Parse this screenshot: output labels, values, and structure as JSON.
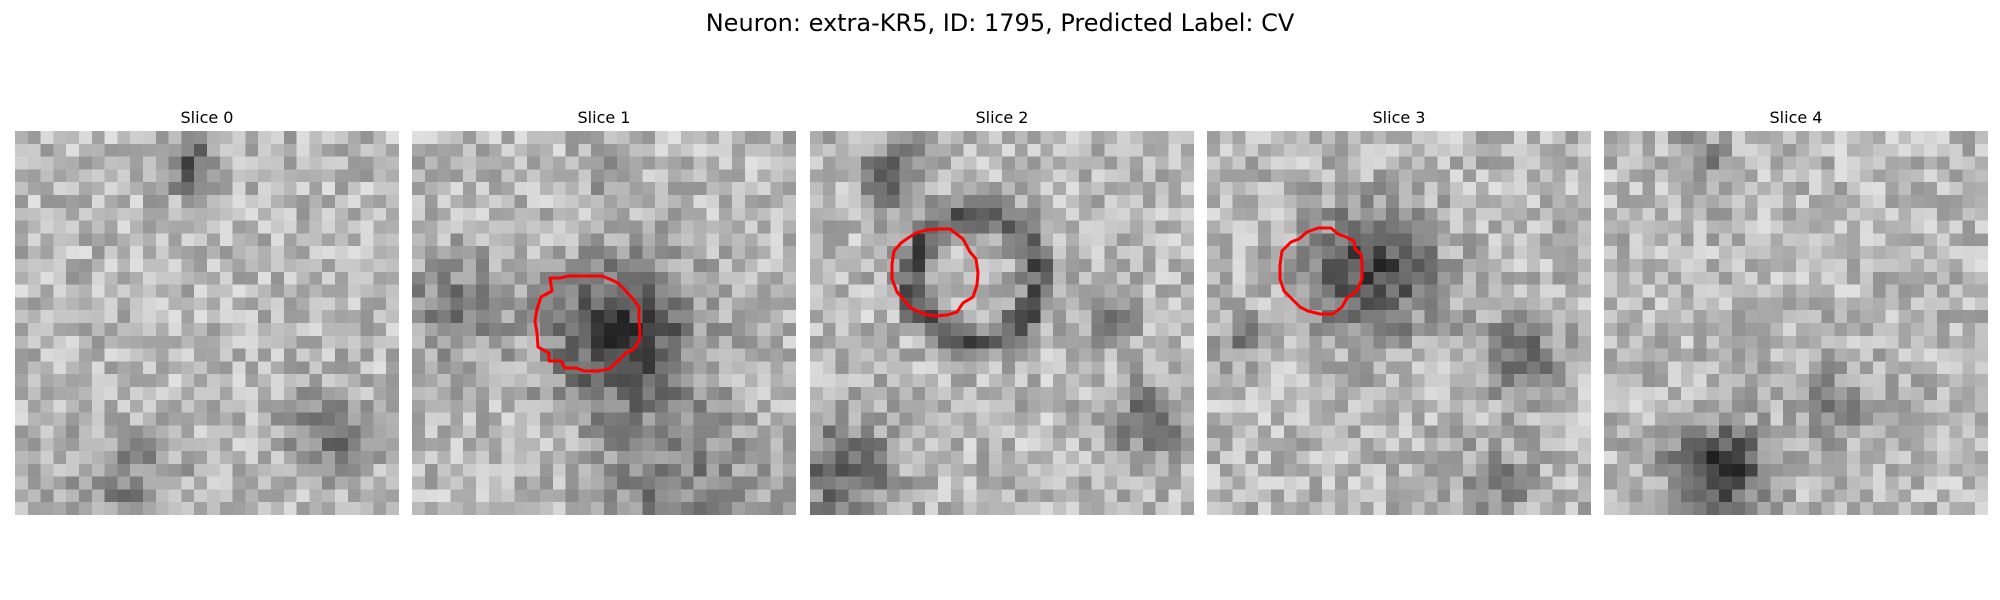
{
  "figure": {
    "title": "Neuron: extra-KR5, ID: 1795, Predicted Label: CV"
  },
  "panels": [
    {
      "title": "Slice 0",
      "has_outline": false
    },
    {
      "title": "Slice 1",
      "has_outline": true
    },
    {
      "title": "Slice 2",
      "has_outline": true
    },
    {
      "title": "Slice 3",
      "has_outline": true
    },
    {
      "title": "Slice 4",
      "has_outline": false
    }
  ],
  "colors": {
    "outline": "#ff0000",
    "background": "#ffffff"
  }
}
